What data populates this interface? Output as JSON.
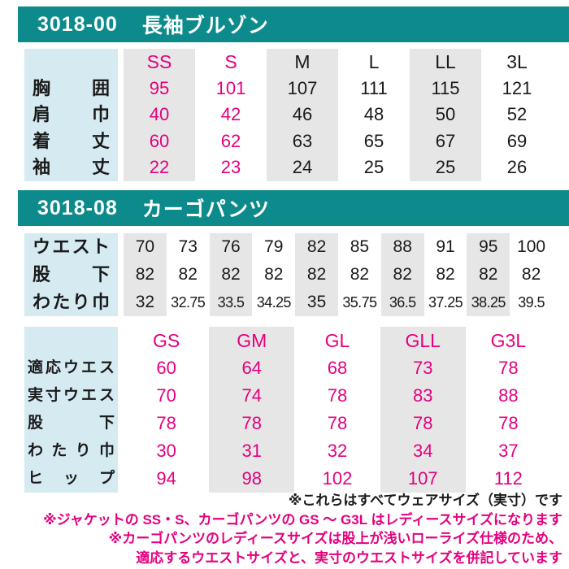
{
  "colors": {
    "header_bar": "#0d8a8b",
    "label_column": "#d5eaf1",
    "column_stripe": "#e6e6e6",
    "ladies_accent": "#e4007f",
    "text": "#1a1a1a"
  },
  "jacket": {
    "code": "3018-00",
    "name": "長袖ブルゾン",
    "table": {
      "sizes": [
        "SS",
        "S",
        "M",
        "L",
        "LL",
        "3L"
      ],
      "striped_columns": [
        0,
        2,
        4
      ],
      "magenta_columns": [
        0,
        1
      ],
      "rows": [
        {
          "label": "胸囲",
          "values": [
            "95",
            "101",
            "107",
            "111",
            "115",
            "121"
          ]
        },
        {
          "label": "肩巾",
          "values": [
            "40",
            "42",
            "46",
            "48",
            "50",
            "52"
          ]
        },
        {
          "label": "着丈",
          "values": [
            "60",
            "62",
            "63",
            "65",
            "67",
            "69"
          ]
        },
        {
          "label": "袖丈",
          "values": [
            "22",
            "23",
            "24",
            "25",
            "25",
            "26"
          ]
        }
      ]
    }
  },
  "pants": {
    "code": "3018-08",
    "name": "カーゴパンツ",
    "waist_table": {
      "striped_columns": [
        0,
        2,
        4,
        6,
        8
      ],
      "magenta_columns": [],
      "rows": [
        {
          "label": "ウエスト",
          "values": [
            "70",
            "73",
            "76",
            "79",
            "82",
            "85",
            "88",
            "91",
            "95",
            "100"
          ]
        },
        {
          "label": "股下",
          "values": [
            "82",
            "82",
            "82",
            "82",
            "82",
            "82",
            "82",
            "82",
            "82",
            "82"
          ]
        },
        {
          "label": "わたり巾",
          "values": [
            "32",
            "32.75",
            "33.5",
            "34.25",
            "35",
            "35.75",
            "36.5",
            "37.25",
            "38.25",
            "39.5"
          ]
        }
      ]
    },
    "ladies_table": {
      "sizes": [
        "GS",
        "GM",
        "GL",
        "GLL",
        "G3L"
      ],
      "striped_columns": [
        1,
        3
      ],
      "magenta_columns": [
        0,
        1,
        2,
        3,
        4
      ],
      "rows": [
        {
          "label": "適応ウエスト",
          "values": [
            "60",
            "64",
            "68",
            "73",
            "78"
          ]
        },
        {
          "label": "実寸ウエスト",
          "values": [
            "70",
            "74",
            "78",
            "83",
            "88"
          ]
        },
        {
          "label": "股下",
          "values": [
            "78",
            "78",
            "78",
            "78",
            "78"
          ]
        },
        {
          "label": "わたり巾",
          "values": [
            "30",
            "31",
            "32",
            "34",
            "37"
          ]
        },
        {
          "label": "ヒップ",
          "values": [
            "94",
            "98",
            "102",
            "107",
            "112"
          ]
        }
      ]
    }
  },
  "notes": [
    {
      "text": "※これらはすべてウェアサイズ（実寸）です",
      "tone": "ink"
    },
    {
      "text": "※ジャケットの SS・S、カーゴパンツの GS ～ G3L はレディースサイズになります",
      "tone": "accent"
    },
    {
      "text": "※カーゴパンツのレディースサイズは股上が浅いローライズ仕様のため、",
      "tone": "accent"
    },
    {
      "text": "適応するウエストサイズと、実寸のウエストサイズを併記しています",
      "tone": "accent"
    }
  ]
}
